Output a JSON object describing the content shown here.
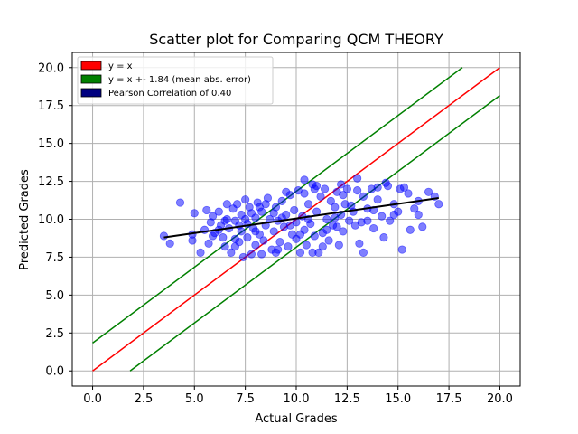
{
  "chart_data": {
    "type": "scatter",
    "title": "Scatter plot for Comparing QCM THEORY",
    "xlabel": "Actual Grades",
    "ylabel": "Predicted Grades",
    "xlim": [
      -1.0,
      21.0
    ],
    "ylim": [
      -1.0,
      21.0
    ],
    "xticks": [
      0.0,
      2.5,
      5.0,
      7.5,
      10.0,
      12.5,
      15.0,
      17.5,
      20.0
    ],
    "yticks": [
      0.0,
      2.5,
      5.0,
      7.5,
      10.0,
      12.5,
      15.0,
      17.5,
      20.0
    ],
    "xtick_labels": [
      "0.0",
      "2.5",
      "5.0",
      "7.5",
      "10.0",
      "12.5",
      "15.0",
      "17.5",
      "20.0"
    ],
    "ytick_labels": [
      "0.0",
      "2.5",
      "5.0",
      "7.5",
      "10.0",
      "12.5",
      "15.0",
      "17.5",
      "20.0"
    ],
    "grid": true,
    "legend_position": "top-left",
    "lines": [
      {
        "name": "y = x",
        "color": "#ff0000",
        "x": [
          0,
          20
        ],
        "y": [
          0,
          20
        ]
      },
      {
        "name": "y = x +- 1.84 (mean abs. error)",
        "color": "#008000",
        "x": [
          0,
          18.16
        ],
        "y": [
          1.84,
          20
        ]
      },
      {
        "name": "",
        "color": "#008000",
        "x": [
          1.84,
          20
        ],
        "y": [
          0,
          18.16
        ]
      },
      {
        "name": "Pearson Correlation of 0.40",
        "color": "#000080",
        "x": [
          3.5,
          17.0
        ],
        "y": [
          8.8,
          11.4
        ]
      }
    ],
    "series": [
      {
        "color": "#0000ff",
        "points": [
          [
            3.5,
            8.9
          ],
          [
            3.8,
            8.4
          ],
          [
            4.3,
            11.1
          ],
          [
            4.9,
            9.0
          ],
          [
            4.9,
            8.6
          ],
          [
            5.0,
            10.4
          ],
          [
            5.3,
            7.8
          ],
          [
            5.5,
            9.3
          ],
          [
            5.6,
            10.6
          ],
          [
            5.7,
            8.4
          ],
          [
            5.9,
            8.9
          ],
          [
            5.9,
            10.2
          ],
          [
            6.0,
            9.1
          ],
          [
            6.2,
            10.5
          ],
          [
            6.3,
            9.6
          ],
          [
            6.4,
            8.8
          ],
          [
            6.5,
            8.2
          ],
          [
            6.6,
            10.0
          ],
          [
            6.6,
            11.0
          ],
          [
            6.7,
            9.4
          ],
          [
            6.8,
            7.8
          ],
          [
            6.9,
            10.7
          ],
          [
            7.0,
            8.2
          ],
          [
            7.0,
            9.9
          ],
          [
            7.1,
            11.0
          ],
          [
            7.2,
            8.5
          ],
          [
            7.3,
            9.2
          ],
          [
            7.3,
            10.3
          ],
          [
            7.4,
            7.5
          ],
          [
            7.5,
            11.3
          ],
          [
            7.6,
            8.8
          ],
          [
            7.6,
            9.7
          ],
          [
            7.7,
            10.8
          ],
          [
            7.8,
            7.7
          ],
          [
            7.9,
            9.4
          ],
          [
            8.0,
            8.3
          ],
          [
            8.0,
            10.1
          ],
          [
            8.1,
            11.1
          ],
          [
            8.2,
            9.0
          ],
          [
            8.3,
            7.7
          ],
          [
            8.3,
            10.5
          ],
          [
            8.4,
            8.6
          ],
          [
            8.5,
            9.6
          ],
          [
            8.6,
            11.4
          ],
          [
            8.7,
            10.0
          ],
          [
            8.8,
            8.0
          ],
          [
            8.9,
            9.2
          ],
          [
            9.0,
            10.8
          ],
          [
            9.0,
            7.8
          ],
          [
            9.1,
            9.9
          ],
          [
            9.2,
            8.5
          ],
          [
            9.3,
            11.2
          ],
          [
            9.4,
            9.5
          ],
          [
            9.5,
            10.3
          ],
          [
            9.6,
            8.2
          ],
          [
            9.7,
            11.6
          ],
          [
            9.8,
            9.0
          ],
          [
            9.9,
            10.6
          ],
          [
            10.0,
            8.7
          ],
          [
            10.0,
            9.8
          ],
          [
            10.1,
            11.9
          ],
          [
            10.2,
            7.8
          ],
          [
            10.3,
            10.2
          ],
          [
            10.4,
            9.3
          ],
          [
            10.4,
            12.6
          ],
          [
            10.5,
            8.3
          ],
          [
            10.6,
            11.0
          ],
          [
            10.7,
            9.7
          ],
          [
            10.8,
            12.3
          ],
          [
            10.9,
            8.9
          ],
          [
            11.0,
            10.5
          ],
          [
            11.1,
            7.8
          ],
          [
            11.2,
            11.5
          ],
          [
            11.3,
            9.1
          ],
          [
            11.4,
            12.0
          ],
          [
            11.5,
            10.0
          ],
          [
            11.6,
            8.6
          ],
          [
            11.7,
            11.2
          ],
          [
            11.8,
            9.6
          ],
          [
            11.9,
            10.8
          ],
          [
            12.0,
            11.8
          ],
          [
            12.1,
            8.3
          ],
          [
            12.2,
            10.3
          ],
          [
            12.3,
            9.2
          ],
          [
            12.4,
            11.0
          ],
          [
            12.5,
            12.0
          ],
          [
            12.6,
            9.9
          ],
          [
            12.8,
            10.5
          ],
          [
            13.0,
            12.7
          ],
          [
            13.1,
            8.4
          ],
          [
            13.2,
            9.8
          ],
          [
            13.3,
            11.5
          ],
          [
            13.3,
            7.8
          ],
          [
            13.5,
            10.7
          ],
          [
            13.7,
            12.0
          ],
          [
            13.8,
            9.4
          ],
          [
            14.0,
            11.3
          ],
          [
            14.2,
            10.2
          ],
          [
            14.3,
            8.8
          ],
          [
            14.5,
            12.2
          ],
          [
            14.6,
            9.9
          ],
          [
            14.8,
            11.0
          ],
          [
            15.0,
            10.5
          ],
          [
            15.1,
            12.0
          ],
          [
            15.2,
            8.0
          ],
          [
            15.5,
            11.7
          ],
          [
            15.6,
            9.3
          ],
          [
            15.8,
            10.7
          ],
          [
            16.0,
            11.2
          ],
          [
            16.2,
            9.5
          ],
          [
            16.5,
            11.8
          ],
          [
            16.8,
            11.5
          ],
          [
            17.0,
            11.0
          ],
          [
            16.0,
            10.3
          ],
          [
            14.0,
            12.1
          ],
          [
            13.0,
            11.9
          ],
          [
            12.0,
            9.5
          ],
          [
            11.0,
            12.2
          ],
          [
            9.5,
            11.8
          ],
          [
            8.5,
            11.0
          ],
          [
            7.8,
            10.4
          ],
          [
            7.2,
            9.6
          ],
          [
            6.2,
            9.3
          ],
          [
            5.8,
            9.8
          ],
          [
            10.8,
            7.8
          ],
          [
            10.2,
            9.0
          ],
          [
            9.3,
            10.1
          ],
          [
            8.2,
            10.8
          ],
          [
            11.5,
            9.3
          ],
          [
            12.7,
            10.9
          ],
          [
            13.8,
            10.6
          ],
          [
            14.4,
            12.4
          ],
          [
            15.3,
            12.1
          ],
          [
            12.3,
            11.6
          ],
          [
            10.6,
            10.0
          ],
          [
            9.7,
            9.6
          ],
          [
            8.9,
            10.4
          ],
          [
            11.9,
            10.1
          ],
          [
            13.5,
            9.9
          ],
          [
            14.8,
            10.3
          ],
          [
            7.0,
            8.7
          ],
          [
            6.5,
            9.9
          ],
          [
            8.0,
            9.2
          ],
          [
            10.4,
            11.7
          ],
          [
            11.3,
            8.2
          ],
          [
            12.9,
            9.6
          ],
          [
            9.1,
            8.0
          ],
          [
            7.5,
            10.0
          ],
          [
            10.9,
            12.0
          ],
          [
            12.2,
            12.3
          ]
        ]
      }
    ],
    "legend": [
      {
        "label": "y = x",
        "color": "#ff0000"
      },
      {
        "label": "y = x +- 1.84 (mean abs. error)",
        "color": "#008000"
      },
      {
        "label": "Pearson Correlation of 0.40",
        "color": "#000080"
      }
    ]
  }
}
